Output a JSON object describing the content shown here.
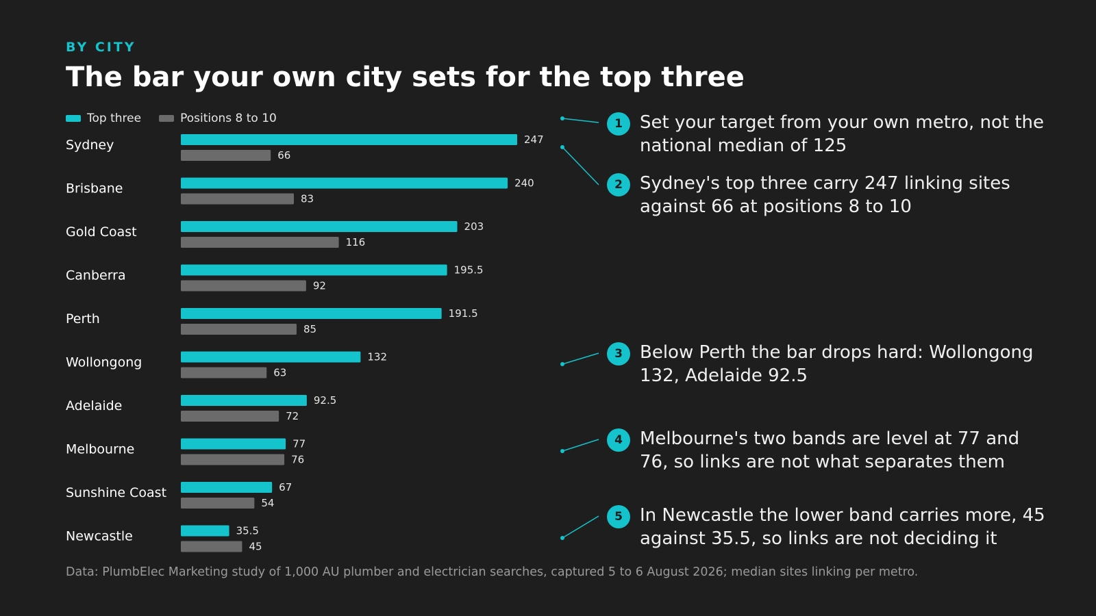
{
  "eyebrow": "BY CITY",
  "title": "The bar your own city sets for the top three",
  "legend": {
    "top": "Top three",
    "low": "Positions 8 to 10"
  },
  "colors": {
    "accent": "#14c3cc",
    "secondary": "#6b6b6b",
    "background": "#1e1e1e"
  },
  "chart_data": {
    "type": "bar",
    "orientation": "horizontal",
    "categories": [
      "Sydney",
      "Brisbane",
      "Gold Coast",
      "Canberra",
      "Perth",
      "Wollongong",
      "Adelaide",
      "Melbourne",
      "Sunshine Coast",
      "Newcastle"
    ],
    "series": [
      {
        "name": "Top three",
        "values": [
          247,
          240,
          203,
          195.5,
          191.5,
          132,
          92.5,
          77,
          67,
          35.5
        ]
      },
      {
        "name": "Positions 8 to 10",
        "values": [
          66,
          83,
          116,
          92,
          85,
          63,
          72,
          76,
          54,
          45
        ]
      }
    ],
    "xlim": [
      0,
      247
    ],
    "data_labels": true,
    "grid": false,
    "legend_position": "top-left"
  },
  "callouts": [
    {
      "number": "1",
      "text": "Set your target from your own metro, not the national median of 125"
    },
    {
      "number": "2",
      "text": "Sydney's top three carry 247 linking sites against 66 at positions 8 to 10"
    },
    {
      "number": "3",
      "text": "Below Perth the bar drops hard: Wollongong 132, Adelaide 92.5"
    },
    {
      "number": "4",
      "text": "Melbourne's two bands are level at 77 and 76, so links are not what separates them"
    },
    {
      "number": "5",
      "text": "In Newcastle the lower band carries more, 45 against 35.5, so links are not deciding it"
    }
  ],
  "source": "Data: PlumbElec Marketing study of 1,000 AU plumber and electrician searches, captured 5 to 6 August 2026; median sites linking per metro."
}
